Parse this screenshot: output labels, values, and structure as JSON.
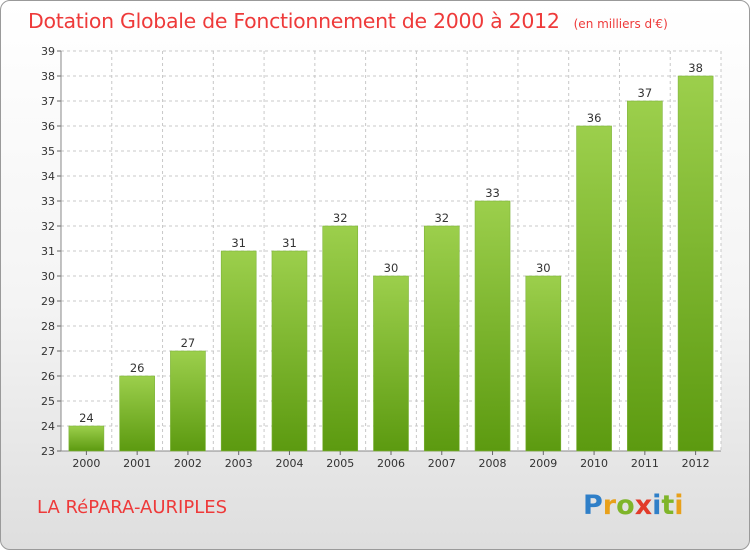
{
  "header": {
    "title": "Dotation Globale de Fonctionnement de 2000 à 2012",
    "subtitle": "(en milliers d'€)"
  },
  "footer": {
    "commune": "LA RéPARA-AURIPLES",
    "brand_letters": [
      "P",
      "r",
      "o",
      "x",
      "i",
      "t",
      "i"
    ],
    "brand_colors": [
      "#2f7fc8",
      "#e8a01a",
      "#7fb52a",
      "#e23b2a",
      "#2f7fc8",
      "#7fb52a",
      "#e8a01a"
    ]
  },
  "colors": {
    "bar_top": "#9ccf4c",
    "bar_bottom": "#5c9a10",
    "title": "#ee3a3a"
  },
  "chart_data": {
    "type": "bar",
    "title": "Dotation Globale de Fonctionnement de 2000 à 2012",
    "subtitle": "(en milliers d'€)",
    "categories": [
      "2000",
      "2001",
      "2002",
      "2003",
      "2004",
      "2005",
      "2006",
      "2007",
      "2008",
      "2009",
      "2010",
      "2011",
      "2012"
    ],
    "values": [
      24,
      26,
      27,
      31,
      31,
      32,
      30,
      32,
      33,
      30,
      36,
      37,
      38
    ],
    "ylim": [
      23,
      39
    ],
    "yticks": [
      23,
      24,
      25,
      26,
      27,
      28,
      29,
      30,
      31,
      32,
      33,
      34,
      35,
      36,
      37,
      38,
      39
    ],
    "grid": true,
    "xlabel": "",
    "ylabel": ""
  }
}
